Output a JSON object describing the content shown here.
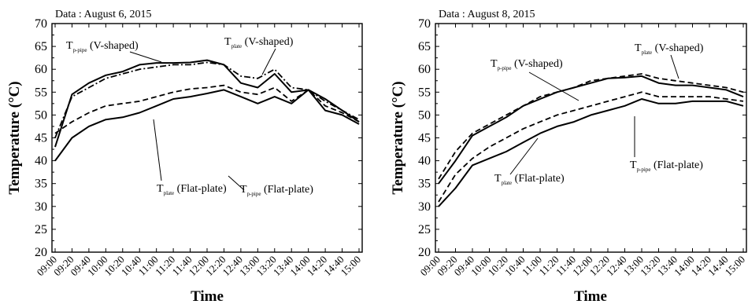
{
  "chart_data": [
    {
      "type": "line",
      "caption": "Data : August 6, 2015",
      "xlabel": "Time",
      "ylabel": "Temperature (°C)",
      "ylim": [
        20,
        70
      ],
      "yticks": [
        20,
        25,
        30,
        35,
        40,
        45,
        50,
        55,
        60,
        65,
        70
      ],
      "categories": [
        "09:00",
        "09:20",
        "09:40",
        "10:00",
        "10:20",
        "10:40",
        "11:00",
        "11:20",
        "11:40",
        "12:00",
        "12:20",
        "12:40",
        "13:00",
        "13:20",
        "13:40",
        "14:00",
        "14:20",
        "14:40",
        "15:00"
      ],
      "annotations": [
        {
          "main": "T",
          "sub": "p-pipe",
          "rest": " (V-shaped)"
        },
        {
          "main": "T",
          "sub": "plate",
          "rest": " (V-shaped)"
        },
        {
          "main": "T",
          "sub": "p-pipe",
          "rest": " (Flat-plate)"
        },
        {
          "main": "T",
          "sub": "plate",
          "rest": " (Flat-plate)"
        }
      ],
      "series": [
        {
          "name": "T p-pipe (V-shaped)",
          "style": "solid",
          "values": [
            43,
            54.5,
            57,
            58.7,
            59.5,
            61,
            61.4,
            61.4,
            61.5,
            62,
            61,
            57,
            56,
            59,
            55,
            55.5,
            53.5,
            51,
            48.5
          ]
        },
        {
          "name": "T plate (V-shaped)",
          "style": "dashdot",
          "values": [
            45,
            54,
            56,
            58,
            59,
            60,
            60.5,
            61,
            61,
            61.5,
            61,
            58.5,
            58,
            60,
            56,
            55.5,
            53,
            51,
            49
          ]
        },
        {
          "name": "T p-pipe (Flat-plate)",
          "style": "dashed",
          "values": [
            46,
            48.5,
            50.5,
            52,
            52.5,
            53,
            54,
            55,
            55.7,
            56,
            56.5,
            55,
            54.5,
            56,
            53,
            55.5,
            52,
            50.5,
            48.5
          ]
        },
        {
          "name": "T plate (Flat-plate)",
          "style": "solid",
          "values": [
            40,
            45,
            47.5,
            49,
            49.5,
            50.5,
            52,
            53.5,
            54,
            54.7,
            55.5,
            54,
            52.5,
            54,
            52.5,
            55.5,
            51,
            50,
            48
          ]
        }
      ]
    },
    {
      "type": "line",
      "caption": "Data : August 8, 2015",
      "xlabel": "Time",
      "ylabel": "Temperature (°C)",
      "ylim": [
        20,
        70
      ],
      "yticks": [
        20,
        25,
        30,
        35,
        40,
        45,
        50,
        55,
        60,
        65,
        70
      ],
      "categories": [
        "09:00",
        "09:20",
        "09:40",
        "10:00",
        "10:20",
        "10:40",
        "11:00",
        "11:20",
        "11:40",
        "12:00",
        "12:20",
        "12:40",
        "13:00",
        "13:20",
        "13:40",
        "14:00",
        "14:20",
        "14:40",
        "15:00"
      ],
      "annotations": [
        {
          "main": "T",
          "sub": "p-pipe",
          "rest": " (V-shaped)"
        },
        {
          "main": "T",
          "sub": "plate",
          "rest": " (V-shaped)"
        },
        {
          "main": "T",
          "sub": "p-pipe",
          "rest": " (Flat-plate)"
        },
        {
          "main": "T",
          "sub": "plate",
          "rest": " (Flat-plate)"
        }
      ],
      "series": [
        {
          "name": "T p-pipe (V-shaped)",
          "style": "solid",
          "values": [
            35,
            40,
            45.5,
            47.5,
            49.5,
            52,
            53.5,
            55,
            56,
            57,
            58,
            58.2,
            58.5,
            57,
            56.5,
            56.5,
            56,
            55.5,
            54
          ]
        },
        {
          "name": "T plate (V-shaped)",
          "style": "dashed",
          "values": [
            36,
            42,
            46,
            48,
            50,
            52,
            54,
            55,
            56,
            57.5,
            58,
            58.5,
            59,
            58,
            57.5,
            57,
            56.5,
            56,
            55
          ]
        },
        {
          "name": "T p-pipe (Flat-plate)",
          "style": "dashed",
          "values": [
            31,
            37,
            40.5,
            43,
            45,
            47,
            48.5,
            50,
            51,
            52,
            53,
            54,
            55,
            54,
            54,
            54,
            54,
            53.5,
            53
          ]
        },
        {
          "name": "T plate (Flat-plate)",
          "style": "solid",
          "values": [
            30,
            34,
            39,
            40.5,
            42,
            44,
            46,
            47.5,
            48.5,
            50,
            51,
            52,
            53.5,
            52.5,
            52.5,
            53,
            53,
            53,
            52
          ]
        }
      ]
    }
  ]
}
